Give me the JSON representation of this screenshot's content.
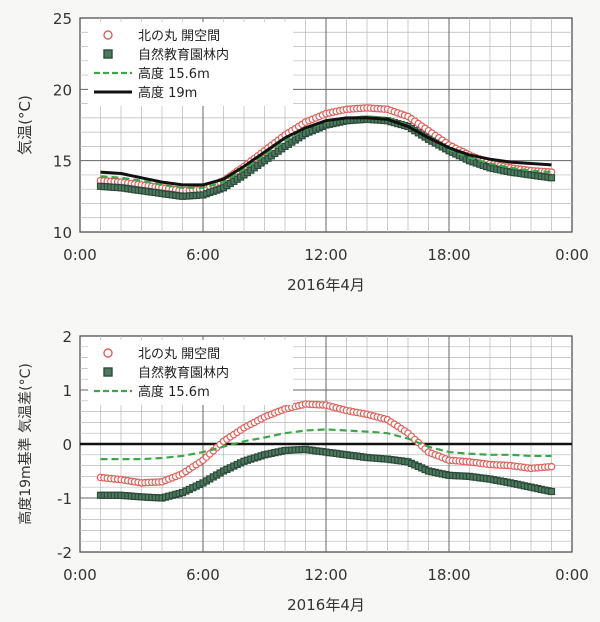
{
  "chart_data": [
    {
      "type": "line",
      "xlabel": "2016年4月",
      "ylabel": "気温(°C)",
      "x_ticks": [
        "0:00",
        "6:00",
        "12:00",
        "18:00",
        "0:00"
      ],
      "y_ticks": [
        "10",
        "15",
        "20",
        "25"
      ],
      "xlim_hours": [
        0,
        24
      ],
      "ylim": [
        10,
        25
      ],
      "grid": true,
      "legend_position": "top-left",
      "x_hours": [
        1,
        2,
        3,
        4,
        5,
        6,
        7,
        8,
        9,
        10,
        11,
        12,
        13,
        14,
        15,
        16,
        17,
        18,
        19,
        20,
        21,
        22,
        23
      ],
      "series": [
        {
          "name": "北の丸 開空間",
          "style": "open-circle",
          "color": "#e0605a",
          "values": [
            13.6,
            13.5,
            13.3,
            13.1,
            12.9,
            13.0,
            13.6,
            14.6,
            15.7,
            16.8,
            17.7,
            18.3,
            18.6,
            18.7,
            18.6,
            18.1,
            17.1,
            16.1,
            15.4,
            14.8,
            14.5,
            14.3,
            14.2
          ]
        },
        {
          "name": "自然教育園林内",
          "style": "filled-square",
          "color": "#2c4a3c",
          "values": [
            13.2,
            13.1,
            12.9,
            12.7,
            12.5,
            12.6,
            13.1,
            14.0,
            15.0,
            16.0,
            16.9,
            17.5,
            17.8,
            17.9,
            17.8,
            17.4,
            16.5,
            15.7,
            15.0,
            14.5,
            14.2,
            14.0,
            13.8
          ]
        },
        {
          "name": "高度 15.6m",
          "style": "dashed",
          "color": "#3fa54a",
          "values": [
            13.9,
            13.8,
            13.6,
            13.3,
            13.1,
            13.1,
            13.5,
            14.4,
            15.4,
            16.4,
            17.2,
            17.7,
            18.0,
            18.1,
            18.0,
            17.5,
            16.6,
            15.8,
            15.2,
            14.8,
            14.5,
            14.3,
            14.2
          ]
        },
        {
          "name": "高度 19m",
          "style": "solid",
          "color": "#111111",
          "values": [
            14.2,
            14.1,
            13.8,
            13.5,
            13.3,
            13.3,
            13.7,
            14.6,
            15.6,
            16.6,
            17.3,
            17.8,
            18.0,
            18.0,
            17.9,
            17.4,
            16.6,
            15.9,
            15.4,
            15.1,
            14.9,
            14.8,
            14.7
          ]
        }
      ]
    },
    {
      "type": "line",
      "xlabel": "2016年4月",
      "ylabel": "高度19m基準 気温差(°C)",
      "x_ticks": [
        "0:00",
        "6:00",
        "12:00",
        "18:00",
        "0:00"
      ],
      "y_ticks": [
        "-2",
        "-1",
        "0",
        "1",
        "2"
      ],
      "xlim_hours": [
        0,
        24
      ],
      "ylim": [
        -2,
        2
      ],
      "grid": true,
      "zero_line": true,
      "legend_position": "top-left",
      "x_hours": [
        1,
        2,
        3,
        4,
        5,
        6,
        7,
        8,
        9,
        10,
        11,
        12,
        13,
        14,
        15,
        16,
        17,
        18,
        19,
        20,
        21,
        22,
        23
      ],
      "series": [
        {
          "name": "北の丸 開空間",
          "style": "open-circle",
          "color": "#e0605a",
          "values": [
            -0.62,
            -0.66,
            -0.72,
            -0.7,
            -0.55,
            -0.3,
            0.05,
            0.3,
            0.5,
            0.65,
            0.74,
            0.72,
            0.62,
            0.55,
            0.45,
            0.2,
            -0.15,
            -0.3,
            -0.33,
            -0.38,
            -0.4,
            -0.45,
            -0.42
          ]
        },
        {
          "name": "自然教育園林内",
          "style": "filled-square",
          "color": "#2c4a3c",
          "values": [
            -0.95,
            -0.95,
            -0.98,
            -1.0,
            -0.9,
            -0.72,
            -0.5,
            -0.32,
            -0.2,
            -0.12,
            -0.1,
            -0.15,
            -0.2,
            -0.25,
            -0.28,
            -0.33,
            -0.5,
            -0.58,
            -0.6,
            -0.65,
            -0.72,
            -0.8,
            -0.88
          ]
        },
        {
          "name": "高度 15.6m",
          "style": "dashed",
          "color": "#3fa54a",
          "values": [
            -0.28,
            -0.28,
            -0.28,
            -0.26,
            -0.22,
            -0.15,
            -0.05,
            0.05,
            0.12,
            0.2,
            0.25,
            0.27,
            0.25,
            0.23,
            0.2,
            0.1,
            -0.05,
            -0.15,
            -0.18,
            -0.2,
            -0.2,
            -0.22,
            -0.22
          ]
        }
      ]
    }
  ]
}
